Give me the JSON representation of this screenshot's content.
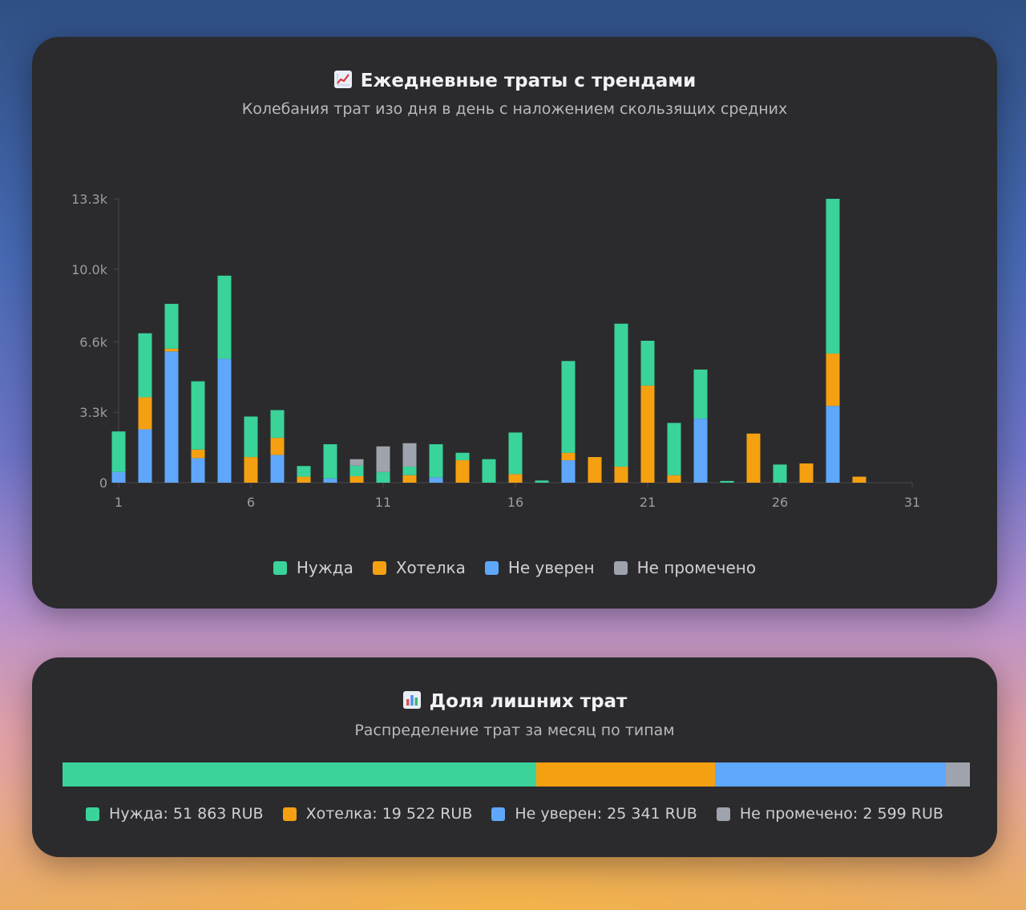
{
  "colors": {
    "need": "#3ad39a",
    "want": "#f5a011",
    "unsure": "#5fa7fb",
    "unmarked": "#9ea3ad"
  },
  "daily_card": {
    "icon": "chart-increasing-icon",
    "title": "Ежедневные траты с трендами",
    "subtitle": "Колебания трат изо дня в день с наложением скользящих средних",
    "legend": [
      {
        "label": "Нужда",
        "color_key": "need"
      },
      {
        "label": "Хотелка",
        "color_key": "want"
      },
      {
        "label": "Не уверен",
        "color_key": "unsure"
      },
      {
        "label": "Не промечено",
        "color_key": "unmarked"
      }
    ]
  },
  "share_card": {
    "icon": "bar-chart-icon",
    "title": "Доля лишних трат",
    "subtitle": "Распределение трат за месяц по типам",
    "items": [
      {
        "label": "Нужда: 51 863 RUB",
        "value": 51863,
        "color_key": "need"
      },
      {
        "label": "Хотелка: 19 522 RUB",
        "value": 19522,
        "color_key": "want"
      },
      {
        "label": "Не уверен: 25 341 RUB",
        "value": 25341,
        "color_key": "unsure"
      },
      {
        "label": "Не промечено: 2 599 RUB",
        "value": 2599,
        "color_key": "unmarked"
      }
    ]
  },
  "chart_data": [
    {
      "type": "bar",
      "stacked": true,
      "title": "Ежедневные траты с трендами",
      "subtitle": "Колебания трат изо дня в день с наложением скользящих средних",
      "xlabel": "",
      "ylabel": "",
      "x": [
        1,
        2,
        3,
        4,
        5,
        6,
        7,
        8,
        9,
        10,
        11,
        12,
        13,
        14,
        15,
        16,
        17,
        18,
        19,
        20,
        21,
        22,
        23,
        24,
        25,
        26,
        27,
        28,
        29,
        30,
        31
      ],
      "x_ticks": [
        "1",
        "6",
        "11",
        "16",
        "21",
        "26",
        "31"
      ],
      "y_ticks": [
        "0",
        "3.3k",
        "6.6k",
        "10.0k",
        "13.3k"
      ],
      "y_tick_values": [
        0,
        3300,
        6600,
        10000,
        13300
      ],
      "ylim": [
        0,
        13300
      ],
      "grid": false,
      "legend_position": "bottom",
      "series": [
        {
          "name": "Не уверен",
          "color_key": "unsure",
          "values": [
            500,
            2500,
            6150,
            1150,
            5800,
            0,
            1300,
            0,
            200,
            0,
            0,
            0,
            250,
            0,
            0,
            0,
            0,
            1050,
            0,
            0,
            0,
            0,
            3000,
            0,
            0,
            0,
            0,
            3600,
            0,
            0,
            0
          ]
        },
        {
          "name": "Хотелка",
          "color_key": "want",
          "values": [
            0,
            1500,
            130,
            400,
            0,
            1200,
            800,
            280,
            0,
            300,
            0,
            350,
            0,
            1050,
            0,
            400,
            0,
            350,
            1200,
            750,
            4550,
            350,
            0,
            0,
            2300,
            0,
            900,
            2450,
            280,
            0,
            0
          ]
        },
        {
          "name": "Нужда",
          "color_key": "need",
          "values": [
            1900,
            3000,
            2100,
            3200,
            3900,
            1900,
            1300,
            500,
            1600,
            500,
            500,
            400,
            1550,
            350,
            1100,
            1950,
            100,
            4300,
            0,
            6700,
            2100,
            2450,
            2300,
            80,
            0,
            850,
            0,
            7250,
            0,
            0,
            0
          ]
        },
        {
          "name": "Не промечено",
          "color_key": "unmarked",
          "values": [
            0,
            0,
            0,
            0,
            0,
            0,
            0,
            0,
            0,
            300,
            1200,
            1100,
            0,
            0,
            0,
            0,
            0,
            0,
            0,
            0,
            0,
            0,
            0,
            0,
            0,
            0,
            0,
            0,
            0,
            0,
            0
          ]
        }
      ]
    },
    {
      "type": "bar",
      "stacked": true,
      "orientation": "horizontal",
      "title": "Доля лишних трат",
      "subtitle": "Распределение трат за месяц по типам",
      "categories": [
        "Нужда",
        "Хотелка",
        "Не уверен",
        "Не промечено"
      ],
      "values": [
        51863,
        19522,
        25341,
        2599
      ],
      "unit": "RUB"
    }
  ]
}
